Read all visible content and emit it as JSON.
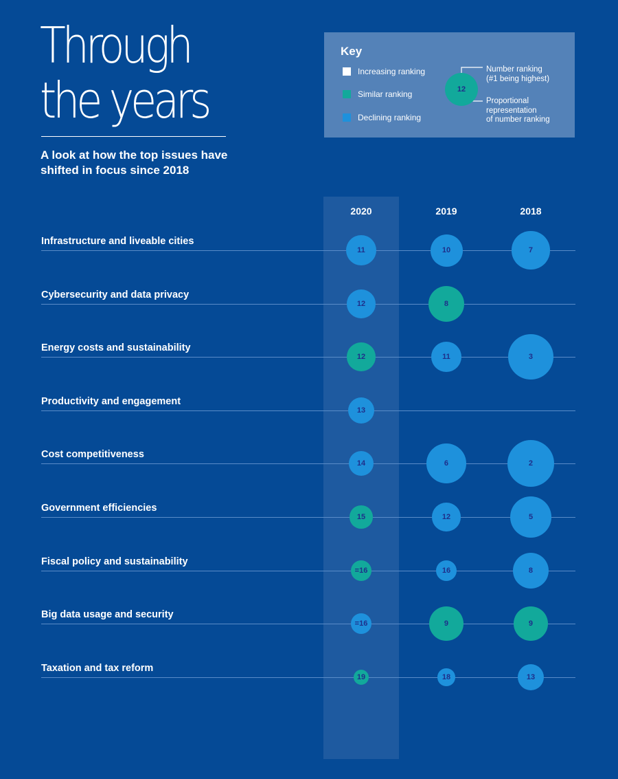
{
  "header": {
    "title_lines": [
      "Through",
      "the years"
    ],
    "subtitle": "A look at how the top issues have shifted in focus since 2018"
  },
  "key": {
    "title": "Key",
    "items": [
      {
        "label": "Increasing ranking",
        "color": "#ffffff"
      },
      {
        "label": "Similar ranking",
        "color": "#12a99b"
      },
      {
        "label": "Declining ranking",
        "color": "#1e91dc"
      }
    ],
    "demo_value": "12",
    "note_top": [
      "Number ranking",
      "(#1 being highest)"
    ],
    "note_bottom": [
      "Proportional",
      "representation",
      "of number ranking"
    ]
  },
  "colors": {
    "background": "#054a96",
    "band": "#1e5aa0",
    "similar": "#12a99b",
    "declining": "#1e91dc",
    "increasing": "#ffffff",
    "bubble_text": "#1e2f8a",
    "row_line": "#5a8cc8"
  },
  "chart_data": {
    "type": "bubble-table",
    "title": "Through the years",
    "subtitle": "A look at how the top issues have shifted in focus since 2018",
    "columns": [
      "2020",
      "2019",
      "2018"
    ],
    "size_encoding": "Proportional representation of number ranking (#1 being highest)",
    "rows": [
      {
        "issue": "Infrastructure and liveable cities",
        "values": [
          {
            "label": "11",
            "rank": 11,
            "status": "declining"
          },
          {
            "label": "10",
            "rank": 10,
            "status": "declining"
          },
          {
            "label": "7",
            "rank": 7,
            "status": "declining"
          }
        ]
      },
      {
        "issue": "Cybersecurity and data privacy",
        "values": [
          {
            "label": "12",
            "rank": 12,
            "status": "declining"
          },
          {
            "label": "8",
            "rank": 8,
            "status": "similar"
          },
          null
        ]
      },
      {
        "issue": "Energy costs and sustainability",
        "values": [
          {
            "label": "12",
            "rank": 12,
            "status": "similar"
          },
          {
            "label": "11",
            "rank": 11,
            "status": "declining"
          },
          {
            "label": "3",
            "rank": 3,
            "status": "declining"
          }
        ]
      },
      {
        "issue": "Productivity and engagement",
        "values": [
          {
            "label": "13",
            "rank": 13,
            "status": "declining"
          },
          null,
          null
        ]
      },
      {
        "issue": "Cost competitiveness",
        "values": [
          {
            "label": "14",
            "rank": 14,
            "status": "declining"
          },
          {
            "label": "6",
            "rank": 6,
            "status": "declining"
          },
          {
            "label": "2",
            "rank": 2,
            "status": "declining"
          }
        ]
      },
      {
        "issue": "Government efficiencies",
        "values": [
          {
            "label": "15",
            "rank": 15,
            "status": "similar"
          },
          {
            "label": "12",
            "rank": 12,
            "status": "declining"
          },
          {
            "label": "5",
            "rank": 5,
            "status": "declining"
          }
        ]
      },
      {
        "issue": "Fiscal policy and sustainability",
        "values": [
          {
            "label": "=16",
            "rank": 16,
            "status": "similar"
          },
          {
            "label": "16",
            "rank": 16,
            "status": "declining"
          },
          {
            "label": "8",
            "rank": 8,
            "status": "declining"
          }
        ]
      },
      {
        "issue": "Big data usage and security",
        "values": [
          {
            "label": "=16",
            "rank": 16,
            "status": "declining"
          },
          {
            "label": "9",
            "rank": 9,
            "status": "similar"
          },
          {
            "label": "9",
            "rank": 9,
            "status": "similar"
          }
        ]
      },
      {
        "issue": "Taxation and tax reform",
        "values": [
          {
            "label": "19",
            "rank": 19,
            "status": "similar"
          },
          {
            "label": "18",
            "rank": 18,
            "status": "declining"
          },
          {
            "label": "13",
            "rank": 13,
            "status": "declining"
          }
        ]
      }
    ]
  }
}
